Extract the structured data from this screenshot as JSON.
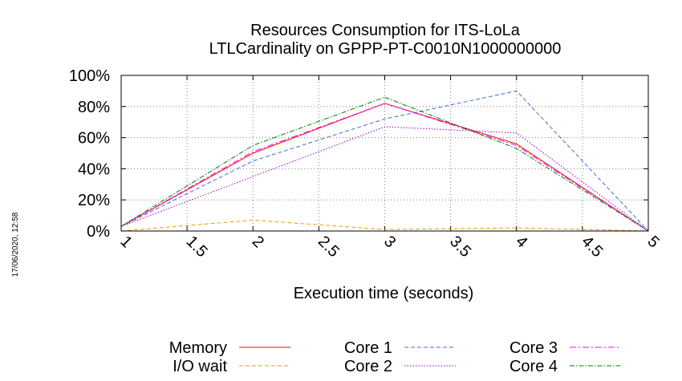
{
  "timestamp": "17/06/2020, 12:58",
  "chart_data": {
    "type": "line",
    "title_line1": "Resources Consumption for ITS-LoLa",
    "title_line2": "LTLCardinality on GPPP-PT-C0010N1000000000",
    "xlabel": "Execution time (seconds)",
    "ylabel": "",
    "xlim": [
      1,
      5
    ],
    "ylim": [
      0,
      100
    ],
    "x_ticks": [
      "1",
      "1.5",
      "2",
      "2.5",
      "3",
      "3.5",
      "4",
      "4.5",
      "5"
    ],
    "x_tick_values": [
      1,
      1.5,
      2,
      2.5,
      3,
      3.5,
      4,
      4.5,
      5
    ],
    "y_ticks": [
      "0%",
      "20%",
      "40%",
      "60%",
      "80%",
      "100%"
    ],
    "y_tick_values": [
      0,
      20,
      40,
      60,
      80,
      100
    ],
    "grid": true,
    "legend_position": "bottom",
    "x": [
      1,
      2,
      3,
      4,
      5
    ],
    "series": [
      {
        "name": "Memory",
        "color": "#ff0000",
        "dash": "solid",
        "values": [
          3,
          50,
          82,
          56,
          0
        ]
      },
      {
        "name": "I/O wait",
        "color": "#e8a000",
        "dash": "dashed",
        "values": [
          0,
          7,
          1,
          2,
          0
        ]
      },
      {
        "name": "Core 1",
        "color": "#3f6fd0",
        "dash": "dashed",
        "values": [
          3,
          45,
          72,
          90,
          0
        ]
      },
      {
        "name": "Core 2",
        "color": "#9400d3",
        "dash": "dotted",
        "values": [
          3,
          35,
          67,
          63,
          0
        ]
      },
      {
        "name": "Core 3",
        "color": "#ff00ff",
        "dash": "dashdot",
        "values": [
          3,
          51,
          82,
          55,
          0
        ]
      },
      {
        "name": "Core 4",
        "color": "#008000",
        "dash": "dashdot2",
        "values": [
          3,
          55,
          86,
          53,
          0
        ]
      }
    ]
  }
}
